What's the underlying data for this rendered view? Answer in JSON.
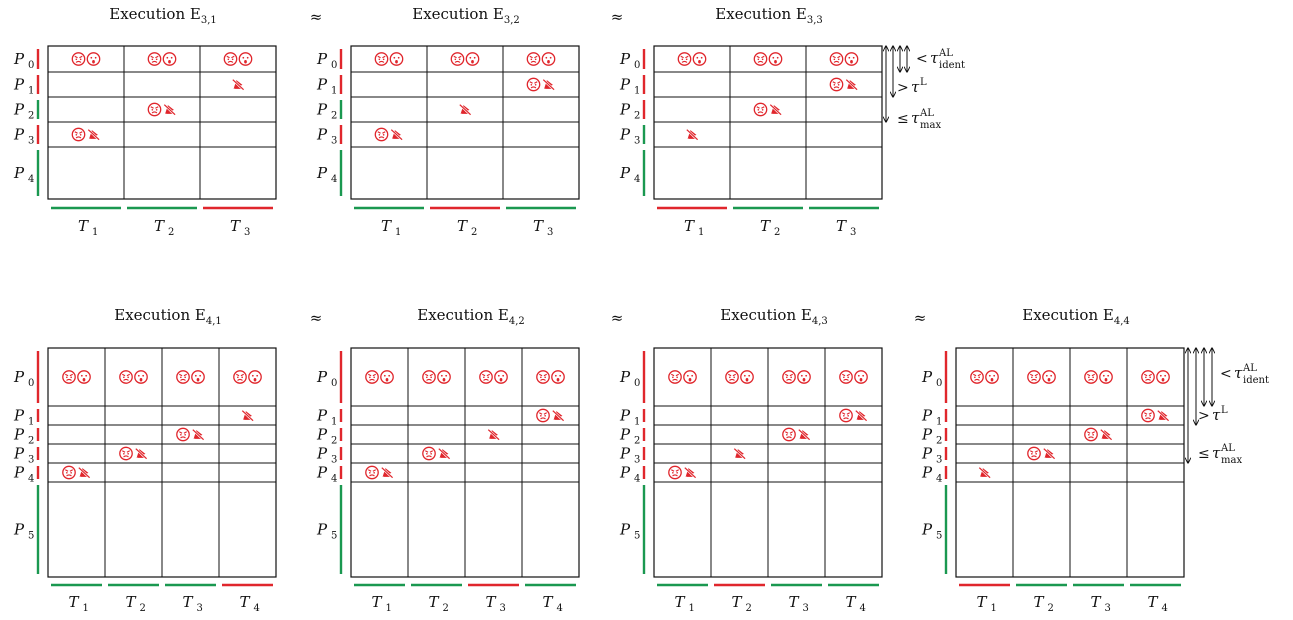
{
  "colors": {
    "red": "#e0262c",
    "green": "#1a9850",
    "line": "#111111"
  },
  "approx_symbol": "≈",
  "icons": {
    "face_pair": "two-red-angry-faces-icon",
    "face_flag": "red-face-with-crossed-flag-icon",
    "flag": "red-crossed-flag-icon"
  },
  "row1": {
    "executions": [
      {
        "title": "Execution E",
        "subscript": "3,1",
        "processes": [
          "P",
          "P",
          "P",
          "P",
          "P"
        ],
        "process_subs": [
          "0",
          "1",
          "2",
          "3",
          "4"
        ],
        "process_colors": [
          "red",
          "red",
          "green",
          "red",
          "green"
        ],
        "tasks": [
          "T",
          "T",
          "T"
        ],
        "task_subs": [
          "1",
          "2",
          "3"
        ],
        "task_colors": [
          "green",
          "green",
          "red"
        ],
        "cells": [
          [
            "face_pair",
            "face_pair",
            "face_pair"
          ],
          [
            "",
            "",
            "flag"
          ],
          [
            "",
            "face_flag",
            ""
          ],
          [
            "face_flag",
            "",
            ""
          ],
          [
            "",
            "",
            ""
          ]
        ]
      },
      {
        "title": "Execution E",
        "subscript": "3,2",
        "processes": [
          "P",
          "P",
          "P",
          "P",
          "P"
        ],
        "process_subs": [
          "0",
          "1",
          "2",
          "3",
          "4"
        ],
        "process_colors": [
          "red",
          "red",
          "green",
          "red",
          "green"
        ],
        "tasks": [
          "T",
          "T",
          "T"
        ],
        "task_subs": [
          "1",
          "2",
          "3"
        ],
        "task_colors": [
          "green",
          "red",
          "green"
        ],
        "cells": [
          [
            "face_pair",
            "face_pair",
            "face_pair"
          ],
          [
            "",
            "",
            "face_flag"
          ],
          [
            "",
            "flag",
            ""
          ],
          [
            "face_flag",
            "",
            ""
          ],
          [
            "",
            "",
            ""
          ]
        ]
      },
      {
        "title": "Execution E",
        "subscript": "3,3",
        "processes": [
          "P",
          "P",
          "P",
          "P",
          "P"
        ],
        "process_subs": [
          "0",
          "1",
          "2",
          "3",
          "4"
        ],
        "process_colors": [
          "red",
          "red",
          "red",
          "green",
          "green"
        ],
        "tasks": [
          "T",
          "T",
          "T"
        ],
        "task_subs": [
          "1",
          "2",
          "3"
        ],
        "task_colors": [
          "red",
          "green",
          "green"
        ],
        "cells": [
          [
            "face_pair",
            "face_pair",
            "face_pair"
          ],
          [
            "",
            "",
            "face_flag"
          ],
          [
            "",
            "face_flag",
            ""
          ],
          [
            "flag",
            "",
            ""
          ],
          [
            "",
            "",
            ""
          ]
        ]
      }
    ],
    "annotations": [
      {
        "rel": "<",
        "sym": "τ",
        "sup": "AL",
        "sub": "ident"
      },
      {
        "rel": ">",
        "sym": "τ",
        "sup": "L",
        "sub": ""
      },
      {
        "rel": "≤",
        "sym": "τ",
        "sup": "AL",
        "sub": "max"
      }
    ]
  },
  "row2": {
    "executions": [
      {
        "title": "Execution E",
        "subscript": "4,1",
        "processes": [
          "P",
          "P",
          "P",
          "P",
          "P",
          "P"
        ],
        "process_subs": [
          "0",
          "1",
          "2",
          "3",
          "4",
          "5"
        ],
        "process_colors": [
          "red",
          "red",
          "red",
          "red",
          "red",
          "green"
        ],
        "tasks": [
          "T",
          "T",
          "T",
          "T"
        ],
        "task_subs": [
          "1",
          "2",
          "3",
          "4"
        ],
        "task_colors": [
          "green",
          "green",
          "green",
          "red"
        ],
        "cells": [
          [
            "face_pair",
            "face_pair",
            "face_pair",
            "face_pair"
          ],
          [
            "",
            "",
            "",
            "flag"
          ],
          [
            "",
            "",
            "face_flag",
            ""
          ],
          [
            "",
            "face_flag",
            "",
            ""
          ],
          [
            "face_flag",
            "",
            "",
            ""
          ],
          [
            "",
            "",
            "",
            ""
          ]
        ]
      },
      {
        "title": "Execution E",
        "subscript": "4,2",
        "processes": [
          "P",
          "P",
          "P",
          "P",
          "P",
          "P"
        ],
        "process_subs": [
          "0",
          "1",
          "2",
          "3",
          "4",
          "5"
        ],
        "process_colors": [
          "red",
          "red",
          "red",
          "red",
          "red",
          "green"
        ],
        "tasks": [
          "T",
          "T",
          "T",
          "T"
        ],
        "task_subs": [
          "1",
          "2",
          "3",
          "4"
        ],
        "task_colors": [
          "green",
          "green",
          "red",
          "green"
        ],
        "cells": [
          [
            "face_pair",
            "face_pair",
            "face_pair",
            "face_pair"
          ],
          [
            "",
            "",
            "",
            "face_flag"
          ],
          [
            "",
            "",
            "flag",
            ""
          ],
          [
            "",
            "face_flag",
            "",
            ""
          ],
          [
            "face_flag",
            "",
            "",
            ""
          ],
          [
            "",
            "",
            "",
            ""
          ]
        ]
      },
      {
        "title": "Execution E",
        "subscript": "4,3",
        "processes": [
          "P",
          "P",
          "P",
          "P",
          "P",
          "P"
        ],
        "process_subs": [
          "0",
          "1",
          "2",
          "3",
          "4",
          "5"
        ],
        "process_colors": [
          "red",
          "red",
          "red",
          "red",
          "red",
          "green"
        ],
        "tasks": [
          "T",
          "T",
          "T",
          "T"
        ],
        "task_subs": [
          "1",
          "2",
          "3",
          "4"
        ],
        "task_colors": [
          "green",
          "red",
          "green",
          "green"
        ],
        "cells": [
          [
            "face_pair",
            "face_pair",
            "face_pair",
            "face_pair"
          ],
          [
            "",
            "",
            "",
            "face_flag"
          ],
          [
            "",
            "",
            "face_flag",
            ""
          ],
          [
            "",
            "flag",
            "",
            ""
          ],
          [
            "face_flag",
            "",
            "",
            ""
          ],
          [
            "",
            "",
            "",
            ""
          ]
        ]
      },
      {
        "title": "Execution E",
        "subscript": "4,4",
        "processes": [
          "P",
          "P",
          "P",
          "P",
          "P",
          "P"
        ],
        "process_subs": [
          "0",
          "1",
          "2",
          "3",
          "4",
          "5"
        ],
        "process_colors": [
          "red",
          "red",
          "red",
          "red",
          "red",
          "green"
        ],
        "tasks": [
          "T",
          "T",
          "T",
          "T"
        ],
        "task_subs": [
          "1",
          "2",
          "3",
          "4"
        ],
        "task_colors": [
          "red",
          "green",
          "green",
          "green"
        ],
        "cells": [
          [
            "face_pair",
            "face_pair",
            "face_pair",
            "face_pair"
          ],
          [
            "",
            "",
            "",
            "face_flag"
          ],
          [
            "",
            "",
            "face_flag",
            ""
          ],
          [
            "",
            "face_flag",
            "",
            ""
          ],
          [
            "flag",
            "",
            "",
            ""
          ],
          [
            "",
            "",
            "",
            ""
          ]
        ]
      }
    ],
    "annotations": [
      {
        "rel": "<",
        "sym": "τ",
        "sup": "AL",
        "sub": "ident"
      },
      {
        "rel": ">",
        "sym": "τ",
        "sup": "L",
        "sub": ""
      },
      {
        "rel": "≤",
        "sym": "τ",
        "sup": "AL",
        "sub": "max"
      }
    ]
  }
}
